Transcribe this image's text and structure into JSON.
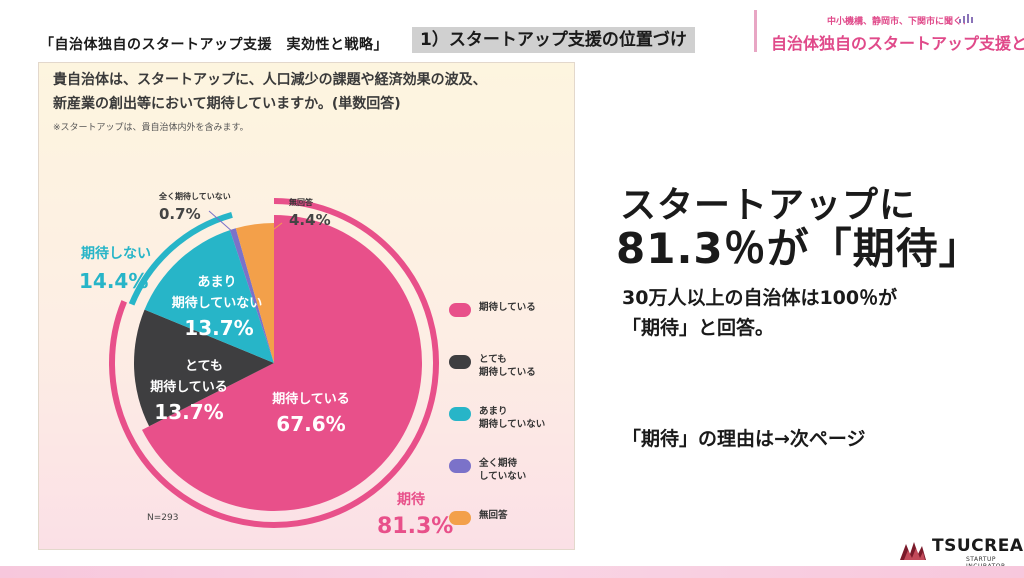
{
  "header": {
    "breadcrumb": "「自治体独自のスタートアップ支援　実効性と戦略」",
    "section": "1）スタートアップ支援の位置づけ"
  },
  "logo": {
    "subtitle": "中小機構、静岡市、下関市に聞く！",
    "title": "自治体独自のスタートアップ支援とは"
  },
  "panel": {
    "question_line1": "貴自治体は、スタートアップに、人口減少の課題や経済効果の波及、",
    "question_line2": "新産業の創出等において期待していますか。(単数回答)",
    "note": "※スタートアップは、貴自治体内外を含みます。",
    "sample_size": "N=293"
  },
  "chart_data": {
    "type": "pie",
    "slices": [
      {
        "label": "期待している",
        "value": 67.6,
        "value_text": "67.6%",
        "color": "#e8508a"
      },
      {
        "label": "とても期待している",
        "value": 13.7,
        "value_text": "13.7%",
        "color": "#3e3e40"
      },
      {
        "label": "あまり期待していない",
        "value": 13.7,
        "value_text": "13.7%",
        "color": "#27b5c8"
      },
      {
        "label": "全く期待していない",
        "value": 0.7,
        "value_text": "0.7%",
        "color": "#7b72c9"
      },
      {
        "label": "無回答",
        "value": 4.4,
        "value_text": "4.4%",
        "color": "#f3a04a"
      }
    ],
    "slice_labels": {
      "slice_0": "期待している",
      "slice_1_line1": "とても",
      "slice_1_line2": "期待している",
      "slice_2_line1": "あまり",
      "slice_2_line2": "期待していない"
    },
    "groups": [
      {
        "label": "期待",
        "value_text": "81.3%",
        "value": 81.3,
        "color": "#e8508a"
      },
      {
        "label": "期待しない",
        "value_text": "14.4%",
        "value": 14.4,
        "color": "#27b5c8"
      }
    ],
    "outside_labels": {
      "none_at_all_line1": "全く期待していない",
      "none_at_all_value": "0.7%",
      "no_answer_line1": "無回答",
      "no_answer_value": "4.4%"
    },
    "legend": [
      {
        "label": "期待している",
        "color": "#e8508a"
      },
      {
        "label": "とても\n期待している",
        "color": "#3e3e40"
      },
      {
        "label": "あまり\n期待していない",
        "color": "#27b5c8"
      },
      {
        "label": "全く期待\nしていない",
        "color": "#7b72c9"
      },
      {
        "label": "無回答",
        "color": "#f3a04a"
      }
    ],
    "legend_position": "right"
  },
  "summary": {
    "line1": "スタートアップに",
    "line2": "81.3％が「期待」",
    "sub1": "30万人以上の自治体は100％が",
    "sub2": "「期待」と回答。",
    "reason": "「期待」の理由は→次ページ"
  },
  "brand": {
    "name": "TSUCREA",
    "sub": "STARTUP INCUBATOR"
  }
}
